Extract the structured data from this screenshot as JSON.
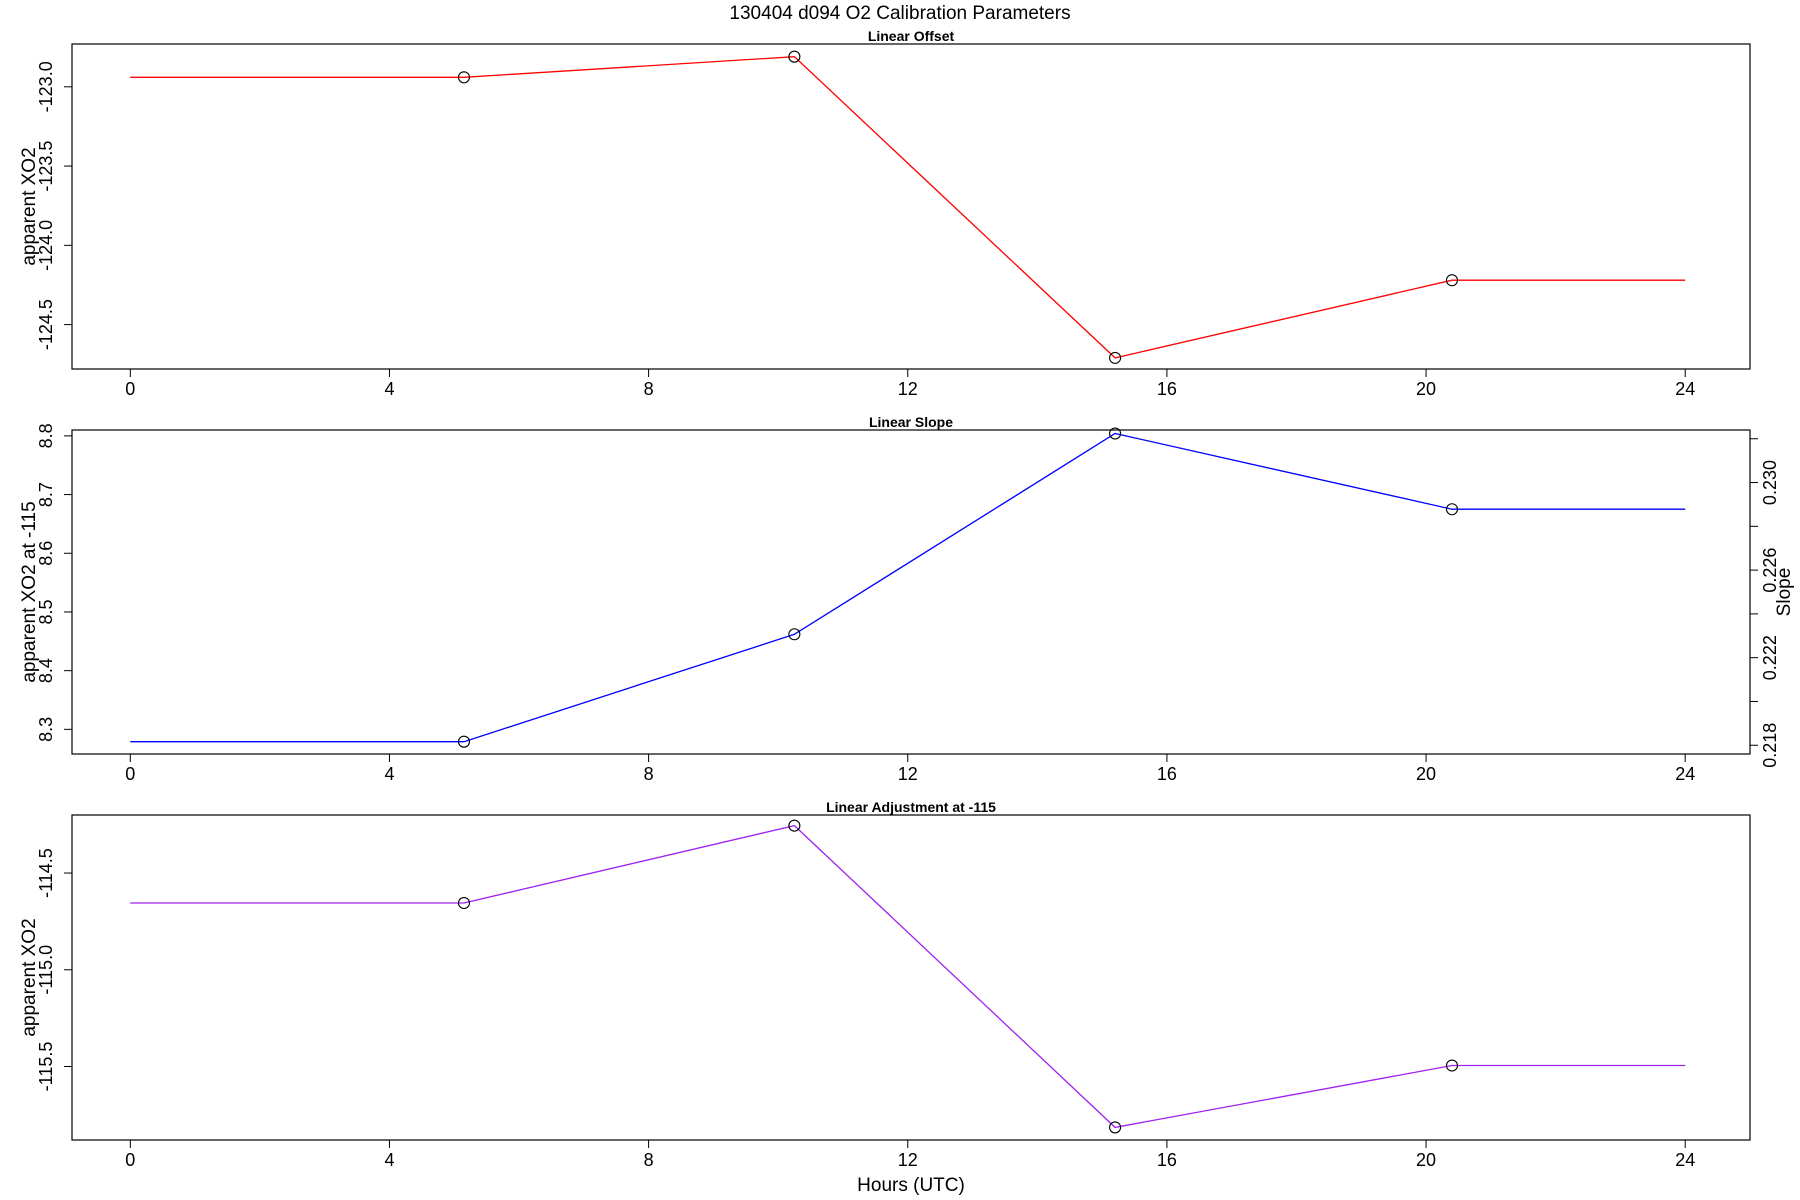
{
  "figure_title": "130404   d094   O2 Calibration Parameters",
  "chart_data": [
    {
      "type": "line",
      "title": "Linear Offset",
      "xlabel": "",
      "ylabel": "apparent XO2",
      "xlim": [
        -0.9,
        25
      ],
      "ylim": [
        -124.78,
        -122.73
      ],
      "x_ticks": [
        0,
        4,
        8,
        12,
        16,
        20,
        24
      ],
      "x_tick_labels": [
        "0",
        "4",
        "8",
        "12",
        "16",
        "20",
        "24"
      ],
      "y_ticks": [
        -123.0,
        -123.5,
        -124.0,
        -124.5
      ],
      "y_tick_labels": [
        "-123.0",
        "-123.5",
        "-124.0",
        "-124.5"
      ],
      "line_color": "#ff0000",
      "line_x": [
        0,
        5.15,
        10.25,
        15.2,
        20.4,
        24
      ],
      "line_y": [
        -122.94,
        -122.94,
        -122.81,
        -124.71,
        -124.22,
        -124.22
      ],
      "points_x": [
        5.15,
        10.25,
        15.2,
        20.4
      ],
      "points_y": [
        -122.94,
        -122.81,
        -124.71,
        -124.22
      ]
    },
    {
      "type": "line",
      "title": "Linear Slope",
      "xlabel": "",
      "ylabel": "apparent XO2 at -115",
      "ylabel_right": "Slope",
      "xlim": [
        -0.9,
        25
      ],
      "ylim": [
        8.258,
        8.81
      ],
      "x_ticks": [
        0,
        4,
        8,
        12,
        16,
        20,
        24
      ],
      "x_tick_labels": [
        "0",
        "4",
        "8",
        "12",
        "16",
        "20",
        "24"
      ],
      "y_ticks": [
        8.3,
        8.4,
        8.5,
        8.6,
        8.7,
        8.8
      ],
      "y_tick_labels": [
        "8.3",
        "8.4",
        "8.5",
        "8.6",
        "8.7",
        "8.8"
      ],
      "y2_ticks": [
        0.218,
        0.22,
        0.222,
        0.224,
        0.226,
        0.228,
        0.23,
        0.232
      ],
      "y2_tick_labels": [
        "0.218",
        "",
        "0.222",
        "",
        "0.226",
        "",
        "0.230",
        ""
      ],
      "y2_lim": [
        0.2176,
        0.2324
      ],
      "line_color": "#0000ff",
      "line_x": [
        0,
        5.15,
        10.25,
        15.2,
        20.4,
        24
      ],
      "line_y": [
        8.279,
        8.279,
        8.462,
        8.804,
        8.675,
        8.675
      ],
      "points_x": [
        5.15,
        10.25,
        15.2,
        20.4
      ],
      "points_y": [
        8.279,
        8.462,
        8.804,
        8.675
      ]
    },
    {
      "type": "line",
      "title": "Linear Adjustment at -115",
      "xlabel": "Hours (UTC)",
      "ylabel": "apparent XO2",
      "xlim": [
        -0.9,
        25
      ],
      "ylim": [
        -115.88,
        -114.2
      ],
      "x_ticks": [
        0,
        4,
        8,
        12,
        16,
        20,
        24
      ],
      "x_tick_labels": [
        "0",
        "4",
        "8",
        "12",
        "16",
        "20",
        "24"
      ],
      "y_ticks": [
        -114.5,
        -115.0,
        -115.5
      ],
      "y_tick_labels": [
        "-114.5",
        "-115.0",
        "-115.5"
      ],
      "line_color": "#a020f0",
      "line_x": [
        0,
        5.15,
        10.25,
        15.2,
        20.4,
        24
      ],
      "line_y": [
        -114.655,
        -114.655,
        -114.255,
        -115.815,
        -115.495,
        -115.495
      ],
      "points_x": [
        5.15,
        10.25,
        15.2,
        20.4
      ],
      "points_y": [
        -114.655,
        -114.255,
        -115.815,
        -115.495
      ]
    }
  ]
}
